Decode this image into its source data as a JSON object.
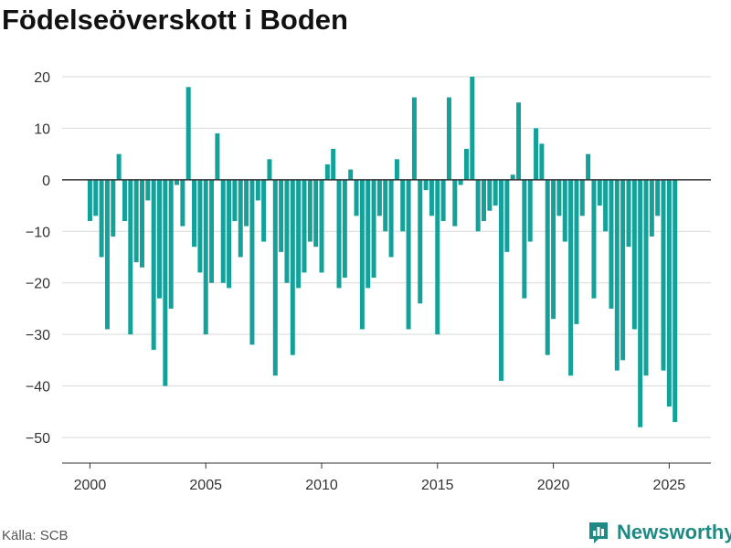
{
  "title": "Födelseöverskott i Boden",
  "source": "Källa: SCB",
  "brand": {
    "name": "Newsworthy",
    "icon": "bar-chart-logo-icon",
    "color": "#1f8a84"
  },
  "colors": {
    "bar": "#13a199",
    "grid": "#d9d9d9",
    "zero": "#333333"
  },
  "chart_data": {
    "type": "bar",
    "title": "Födelseöverskott i Boden",
    "xlabel": "",
    "ylabel": "",
    "ylim": [
      -55,
      20
    ],
    "xlim": [
      1998.8,
      2026.8
    ],
    "y_ticks": [
      20,
      10,
      0,
      -10,
      -20,
      -30,
      -40,
      -50
    ],
    "y_tick_labels": [
      "20",
      "10",
      "0",
      "−10",
      "−20",
      "−30",
      "−40",
      "−50"
    ],
    "x_ticks": [
      2000,
      2005,
      2010,
      2015,
      2020,
      2025
    ],
    "x_tick_labels": [
      "2000",
      "2005",
      "2010",
      "2015",
      "2020",
      "2025"
    ],
    "grid": true,
    "frequency": "quarterly",
    "series": [
      {
        "x": [
          "2000 Q1",
          "2000 Q2",
          "2000 Q3",
          "2000 Q4",
          "2001 Q1",
          "2001 Q2",
          "2001 Q3",
          "2001 Q4",
          "2002 Q1",
          "2002 Q2",
          "2002 Q3",
          "2002 Q4",
          "2003 Q1",
          "2003 Q2",
          "2003 Q3",
          "2003 Q4",
          "2004 Q1",
          "2004 Q2",
          "2004 Q3",
          "2004 Q4",
          "2005 Q1",
          "2005 Q2",
          "2005 Q3",
          "2005 Q4",
          "2006 Q1",
          "2006 Q2",
          "2006 Q3",
          "2006 Q4",
          "2007 Q1",
          "2007 Q2",
          "2007 Q3",
          "2007 Q4",
          "2008 Q1",
          "2008 Q2",
          "2008 Q3",
          "2008 Q4",
          "2009 Q1",
          "2009 Q2",
          "2009 Q3",
          "2009 Q4",
          "2010 Q1",
          "2010 Q2",
          "2010 Q3",
          "2010 Q4",
          "2011 Q1",
          "2011 Q2",
          "2011 Q3",
          "2011 Q4",
          "2012 Q1",
          "2012 Q2",
          "2012 Q3",
          "2012 Q4",
          "2013 Q1",
          "2013 Q2",
          "2013 Q3",
          "2013 Q4",
          "2014 Q1",
          "2014 Q2",
          "2014 Q3",
          "2014 Q4",
          "2015 Q1",
          "2015 Q2",
          "2015 Q3",
          "2015 Q4",
          "2016 Q1",
          "2016 Q2",
          "2016 Q3",
          "2016 Q4",
          "2017 Q1",
          "2017 Q2",
          "2017 Q3",
          "2017 Q4",
          "2018 Q1",
          "2018 Q2",
          "2018 Q3",
          "2018 Q4",
          "2019 Q1",
          "2019 Q2",
          "2019 Q3",
          "2019 Q4",
          "2020 Q1",
          "2020 Q2",
          "2020 Q3",
          "2020 Q4",
          "2021 Q1",
          "2021 Q2",
          "2021 Q3",
          "2021 Q4",
          "2022 Q1",
          "2022 Q2",
          "2022 Q3",
          "2022 Q4",
          "2023 Q1",
          "2023 Q2",
          "2023 Q3",
          "2023 Q4",
          "2024 Q1",
          "2024 Q2",
          "2024 Q3",
          "2024 Q4",
          "2025 Q1",
          "2025 Q2"
        ],
        "values": [
          -8,
          -7,
          -15,
          -29,
          -11,
          5,
          -8,
          -30,
          -16,
          -17,
          -4,
          -33,
          -23,
          -40,
          -25,
          -1,
          -9,
          18,
          -13,
          -18,
          -30,
          -20,
          9,
          -20,
          -21,
          -8,
          -15,
          -9,
          -32,
          -4,
          -12,
          4,
          -38,
          -14,
          -20,
          -34,
          -21,
          -18,
          -12,
          -13,
          -18,
          3,
          6,
          -21,
          -19,
          2,
          -7,
          -29,
          -21,
          -19,
          -7,
          -10,
          -15,
          4,
          -10,
          -29,
          16,
          -24,
          -2,
          -7,
          -30,
          -8,
          16,
          -9,
          -1,
          6,
          20,
          -10,
          -8,
          -6,
          -5,
          -39,
          -14,
          1,
          15,
          -23,
          -12,
          10,
          7,
          -34,
          -27,
          -7,
          -12,
          -38,
          -28,
          -7,
          5,
          -23,
          -5,
          -10,
          -25,
          -37,
          -35,
          -13,
          -29,
          -48,
          -38,
          -11,
          -7,
          -37,
          -44,
          -47
        ]
      }
    ]
  }
}
